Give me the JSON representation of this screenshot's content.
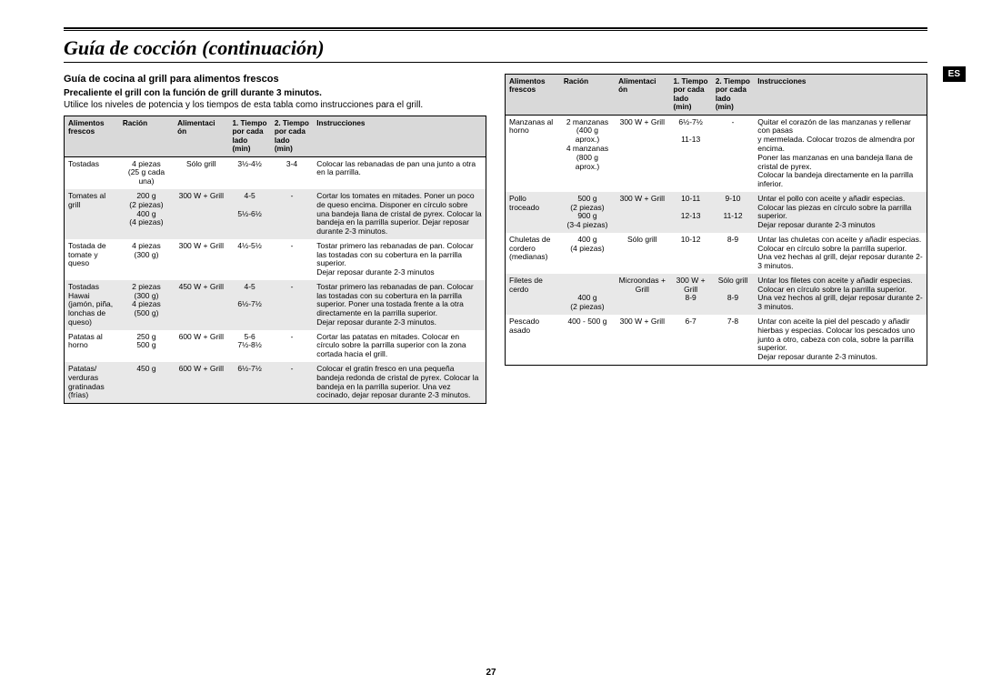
{
  "title": "Guía de cocción (continuación)",
  "side_tab": "ES",
  "page_number": "27",
  "left": {
    "subhead": "Guía de cocina al grill para alimentos frescos",
    "sub2": "Precaliente el grill con la función de grill durante 3 minutos.",
    "intro": "Utilice los niveles de potencia y los tiempos de esta tabla como instrucciones para el grill.",
    "headers": [
      "Alimentos frescos",
      "Ración",
      "Alimentaci\nón",
      "1.\nTiempo\npor cada\nlado\n(min)",
      "2.\nTiempo\npor cada\nlado\n(min)",
      "Instrucciones"
    ],
    "rows": [
      {
        "alt": false,
        "food": "Tostadas",
        "portion": "4 piezas\n(25 g cada una)",
        "power": "Sólo grill",
        "t1": "3½-4½",
        "t2": "3-4",
        "instr": "Colocar las rebanadas de pan una junto a otra en la parrilla."
      },
      {
        "alt": true,
        "food": "Tomates al grill",
        "portion": "200 g\n(2 piezas)\n400 g\n(4 piezas)",
        "power": "300 W + Grill",
        "t1": "4-5\n\n5½-6½",
        "t2": "-",
        "instr": "Cortar los tomates en mitades. Poner un poco de queso encima. Disponer en círculo sobre una bandeja llana de cristal de pyrex. Colocar la bandeja en la parrilla superior. Dejar reposar durante 2-3 minutos."
      },
      {
        "alt": false,
        "food": "Tostada de tomate y queso",
        "portion": "4 piezas\n(300 g)",
        "power": "300 W + Grill",
        "t1": "4½-5½",
        "t2": "-",
        "instr": "Tostar primero las rebanadas de pan. Colocar las tostadas con su cobertura en la parrilla superior.\nDejar reposar durante 2-3 minutos"
      },
      {
        "alt": true,
        "food": "Tostadas Hawai (jamón, piña, lonchas de queso)",
        "portion": "2 piezas\n(300 g)\n4 piezas\n(500 g)",
        "power": "450 W + Grill",
        "t1": "4-5\n\n6½-7½",
        "t2": "-",
        "instr": "Tostar primero las rebanadas de pan. Colocar las tostadas con su cobertura en la parrilla superior. Poner una tostada frente a la otra directamente en la parrilla superior.\nDejar reposar durante 2-3 minutos."
      },
      {
        "alt": false,
        "food": "Patatas al horno",
        "portion": "250 g\n500 g",
        "power": "600 W + Grill",
        "t1": "5-6\n7½-8½",
        "t2": "-",
        "instr": "Cortar las patatas en mitades. Colocar en círculo sobre la parrilla superior con la zona cortada hacia el grill."
      },
      {
        "alt": true,
        "food": "Patatas/ verduras gratinadas (frías)",
        "portion": "450 g",
        "power": "600 W + Grill",
        "t1": "6½-7½",
        "t2": "-",
        "instr": "Colocar el gratin fresco en una pequeña bandeja redonda de cristal de pyrex. Colocar la bandeja en la parrilla superior. Una vez cocinado, dejar reposar durante 2-3 minutos."
      }
    ]
  },
  "right": {
    "headers": [
      "Alimentos frescos",
      "Ración",
      "Alimentaci\nón",
      "1.\nTiempo\npor cada\nlado\n(min)",
      "2.\nTiempo\npor cada\nlado\n(min)",
      "Instrucciones"
    ],
    "rows": [
      {
        "alt": false,
        "food": "Manzanas al horno",
        "portion": "2 manzanas (400 g aprox.)\n4 manzanas (800 g aprox.)",
        "power": "300 W + Grill",
        "t1": "6½-7½\n\n11-13",
        "t2": "-",
        "instr": "Quitar el corazón de las manzanas y rellenar con pasas\ny mermelada. Colocar trozos de almendra por encima.\nPoner las manzanas en una bandeja llana de cristal de pyrex.\nColocar la bandeja directamente en la parrilla inferior."
      },
      {
        "alt": true,
        "food": "Pollo troceado",
        "portion": "500 g\n(2 piezas)\n900 g\n(3-4 piezas)",
        "power": "300 W + Grill",
        "t1": "10-11\n\n12-13",
        "t2": "9-10\n\n11-12",
        "instr": "Untar el pollo con aceite y añadir especias.\nColocar las piezas en círculo sobre la parrilla superior.\nDejar reposar durante 2-3 minutos"
      },
      {
        "alt": false,
        "food": "Chuletas de cordero (medianas)",
        "portion": "400 g\n(4 piezas)",
        "power": "Sólo grill",
        "t1": "10-12",
        "t2": "8-9",
        "instr": "Untar las chuletas con aceite y añadir especias. Colocar en círculo sobre la parrilla superior.\nUna vez hechas al grill, dejar reposar durante 2-3 minutos."
      },
      {
        "alt": true,
        "food": "Filetes de cerdo",
        "portion": "\n\n400 g\n(2 piezas)",
        "power": "Microondas + Grill",
        "t1": "300 W + Grill\n8-9",
        "t2": "Sólo grill\n\n8-9",
        "instr": "Untar los filetes con aceite y añadir especias.\nColocar en círculo sobre la parrilla superior.\nUna vez hechos al grill, dejar reposar durante 2-3 minutos."
      },
      {
        "alt": false,
        "food": "Pescado asado",
        "portion": "400 - 500 g",
        "power": "300 W + Grill",
        "t1": "6-7",
        "t2": "7-8",
        "instr": "Untar con aceite la piel del pescado y añadir hierbas y especias. Colocar los pescados uno junto a otro, cabeza con cola, sobre la parrilla superior.\nDejar reposar durante 2-3 minutos."
      }
    ]
  },
  "styling": {
    "header_bg": "#d9d9d9",
    "alt_bg": "#e8e8e8",
    "border": "#000000",
    "page_bg": "#ffffff",
    "title_fontsize": 22,
    "body_fontsize": 8.5
  }
}
